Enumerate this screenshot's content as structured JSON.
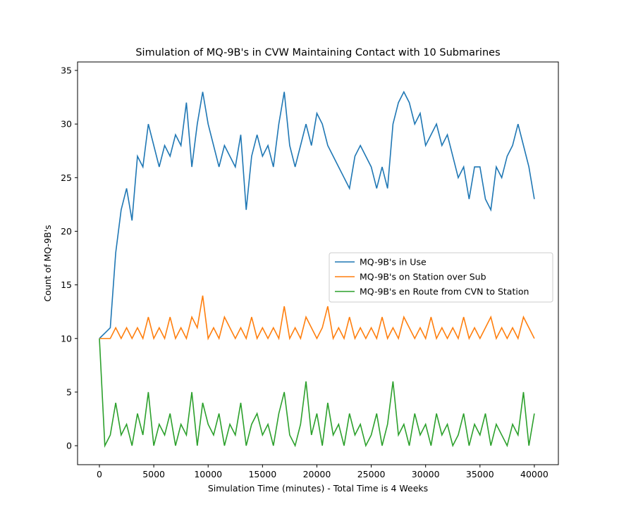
{
  "chart_data": {
    "type": "line",
    "title": "Simulation of MQ-9B's in CVW Maintaining Contact with 10 Submarines",
    "xlabel": "Simulation Time (minutes) - Total Time is 4 Weeks",
    "ylabel": "Count of MQ-9B's",
    "x": [
      0,
      500,
      1000,
      1500,
      2000,
      2500,
      3000,
      3500,
      4000,
      4500,
      5000,
      5500,
      6000,
      6500,
      7000,
      7500,
      8000,
      8500,
      9000,
      9500,
      10000,
      10500,
      11000,
      11500,
      12000,
      12500,
      13000,
      13500,
      14000,
      14500,
      15000,
      15500,
      16000,
      16500,
      17000,
      17500,
      18000,
      18500,
      19000,
      19500,
      20000,
      20500,
      21000,
      21500,
      22000,
      22500,
      23000,
      23500,
      24000,
      24500,
      25000,
      25500,
      26000,
      26500,
      27000,
      27500,
      28000,
      28500,
      29000,
      29500,
      30000,
      30500,
      31000,
      31500,
      32000,
      32500,
      33000,
      33500,
      34000,
      34500,
      35000,
      35500,
      36000,
      36500,
      37000,
      37500,
      38000,
      38500,
      39000,
      39500,
      40000
    ],
    "series": [
      {
        "name": "MQ-9B's in Use",
        "color": "#1f77b4",
        "values": [
          10,
          10.5,
          11,
          18,
          22,
          24,
          21,
          27,
          26,
          30,
          28,
          26,
          28,
          27,
          29,
          28,
          32,
          26,
          30,
          33,
          30,
          28,
          26,
          28,
          27,
          26,
          29,
          22,
          27,
          29,
          27,
          28,
          26,
          30,
          33,
          28,
          26,
          28,
          30,
          28,
          31,
          30,
          28,
          27,
          26,
          25,
          24,
          27,
          28,
          27,
          26,
          24,
          26,
          24,
          30,
          32,
          33,
          32,
          30,
          31,
          28,
          29,
          30,
          28,
          29,
          27,
          25,
          26,
          23,
          26,
          26,
          23,
          22,
          26,
          25,
          27,
          28,
          30,
          28,
          26,
          23
        ]
      },
      {
        "name": "MQ-9B's on Station over Sub",
        "color": "#ff7f0e",
        "values": [
          10,
          10,
          10,
          11,
          10,
          11,
          10,
          11,
          10,
          12,
          10,
          11,
          10,
          12,
          10,
          11,
          10,
          12,
          11,
          14,
          10,
          11,
          10,
          12,
          11,
          10,
          11,
          10,
          12,
          10,
          11,
          10,
          11,
          10,
          13,
          10,
          11,
          10,
          12,
          11,
          10,
          11,
          13,
          10,
          11,
          10,
          12,
          10,
          11,
          10,
          11,
          10,
          12,
          10,
          11,
          10,
          12,
          11,
          10,
          11,
          10,
          12,
          10,
          11,
          10,
          11,
          10,
          12,
          10,
          11,
          10,
          11,
          12,
          10,
          11,
          10,
          11,
          10,
          12,
          11,
          10
        ]
      },
      {
        "name": "MQ-9B's en Route from CVN to Station",
        "color": "#2ca02c",
        "values": [
          10,
          0,
          1,
          4,
          1,
          2,
          0,
          3,
          1,
          5,
          0,
          2,
          1,
          3,
          0,
          2,
          1,
          5,
          0,
          4,
          2,
          1,
          3,
          0,
          2,
          1,
          4,
          0,
          2,
          3,
          1,
          2,
          0,
          3,
          5,
          1,
          0,
          2,
          6,
          1,
          3,
          0,
          4,
          1,
          2,
          0,
          3,
          1,
          2,
          0,
          1,
          3,
          0,
          2,
          6,
          1,
          2,
          0,
          3,
          1,
          2,
          0,
          3,
          1,
          2,
          0,
          1,
          3,
          0,
          2,
          1,
          3,
          0,
          2,
          1,
          0,
          2,
          1,
          5,
          0,
          3
        ]
      }
    ],
    "xlim": [
      -2010,
      42210
    ],
    "ylim": [
      -1.77,
      35.79
    ],
    "xticks": [
      0,
      5000,
      10000,
      15000,
      20000,
      25000,
      30000,
      35000,
      40000
    ],
    "yticks": [
      0,
      5,
      10,
      15,
      20,
      25,
      30,
      35
    ],
    "legend": "center right"
  }
}
